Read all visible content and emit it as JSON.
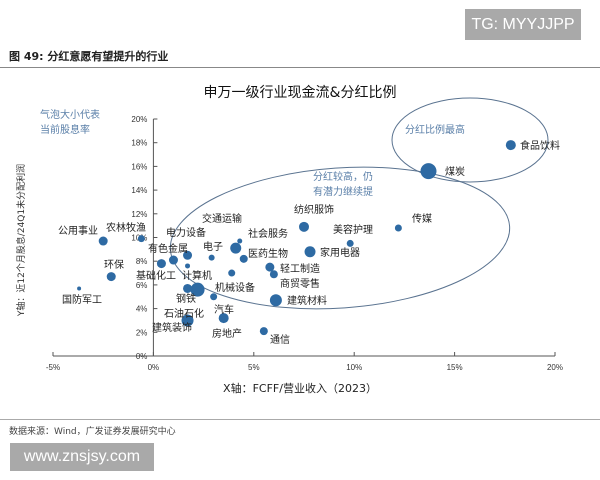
{
  "watermark_top": "TG: MYYJJPP",
  "watermark_bottom": "www.znsjsy.com",
  "figure_title": "图 49: 分红意愿有望提升的行业",
  "source": "数据来源：Wind，广发证券发展研究中心",
  "chart_data": {
    "type": "scatter",
    "title": "申万一级行业现金流&分红比例",
    "xlabel": "X轴：FCFF/营业收入（2023）",
    "ylabel": "Y轴：近12个月股息/24Q1未分配利润",
    "xlim": [
      -5,
      20
    ],
    "ylim": [
      0,
      20
    ],
    "xticks": [
      "-5%",
      "0%",
      "5%",
      "10%",
      "15%",
      "20%"
    ],
    "yticks": [
      "0%",
      "2%",
      "4%",
      "6%",
      "8%",
      "10%",
      "12%",
      "14%",
      "16%",
      "18%",
      "20%"
    ],
    "bubble_note": "气泡大小代表\n当前股息率",
    "bubble_note_lines": [
      "气泡大小代表",
      "当前股息率"
    ],
    "annotations": [
      "分红比例最高",
      "分红较高，仍",
      "有潜力继续提"
    ],
    "bubble_color": "#2e6aa3",
    "ellipse_color": "#5a7390",
    "points": [
      {
        "name": "食品饮料",
        "x": 17.8,
        "y": 17.8,
        "size": 5
      },
      {
        "name": "煤炭",
        "x": 13.7,
        "y": 15.6,
        "size": 8
      },
      {
        "name": "传媒",
        "x": 12.2,
        "y": 10.8,
        "size": 3.5
      },
      {
        "name": "美容护理",
        "x": 9.8,
        "y": 9.5,
        "size": 3.5
      },
      {
        "name": "纺织服饰",
        "x": 7.5,
        "y": 10.9,
        "size": 5
      },
      {
        "name": "家用电器",
        "x": 7.8,
        "y": 8.8,
        "size": 5.5
      },
      {
        "name": "轻工制造",
        "x": 5.8,
        "y": 7.5,
        "size": 4.5
      },
      {
        "name": "商贸零售",
        "x": 6.0,
        "y": 6.9,
        "size": 4
      },
      {
        "name": "建筑材料",
        "x": 6.1,
        "y": 4.7,
        "size": 6
      },
      {
        "name": "通信",
        "x": 5.5,
        "y": 2.1,
        "size": 4
      },
      {
        "name": "社会服务",
        "x": 4.3,
        "y": 9.7,
        "size": 2.5
      },
      {
        "name": "交通运输",
        "x": 4.1,
        "y": 9.1,
        "size": 5.5
      },
      {
        "name": "医药生物",
        "x": 4.5,
        "y": 8.2,
        "size": 4
      },
      {
        "name": "电子",
        "x": 2.9,
        "y": 8.3,
        "size": 3
      },
      {
        "name": "机械设备",
        "x": 3.9,
        "y": 7.0,
        "size": 3.5
      },
      {
        "name": "汽车",
        "x": 3.0,
        "y": 5.0,
        "size": 3.5
      },
      {
        "name": "房地产",
        "x": 3.5,
        "y": 3.2,
        "size": 5
      },
      {
        "name": "公用事业",
        "x": -2.5,
        "y": 9.7,
        "size": 4.5
      },
      {
        "name": "农林牧渔",
        "x": -0.6,
        "y": 9.9,
        "size": 3.5
      },
      {
        "name": "环保",
        "x": -2.1,
        "y": 6.7,
        "size": 4.5
      },
      {
        "name": "国防军工",
        "x": -3.7,
        "y": 5.7,
        "size": 2
      },
      {
        "name": "有色金属",
        "x": 1.7,
        "y": 8.5,
        "size": 4.5
      },
      {
        "name": "基础化工",
        "x": 0.4,
        "y": 7.8,
        "size": 4.5
      },
      {
        "name": "电力设备",
        "x": 1.0,
        "y": 8.1,
        "size": 4.5
      },
      {
        "name": "计算机",
        "x": 1.7,
        "y": 7.6,
        "size": 2.5
      },
      {
        "name": "钢铁",
        "x": 1.7,
        "y": 5.7,
        "size": 4.5
      },
      {
        "name": "石油石化",
        "x": 2.2,
        "y": 5.6,
        "size": 7
      },
      {
        "name": "建筑装饰",
        "x": 1.7,
        "y": 3.0,
        "size": 6
      }
    ]
  }
}
